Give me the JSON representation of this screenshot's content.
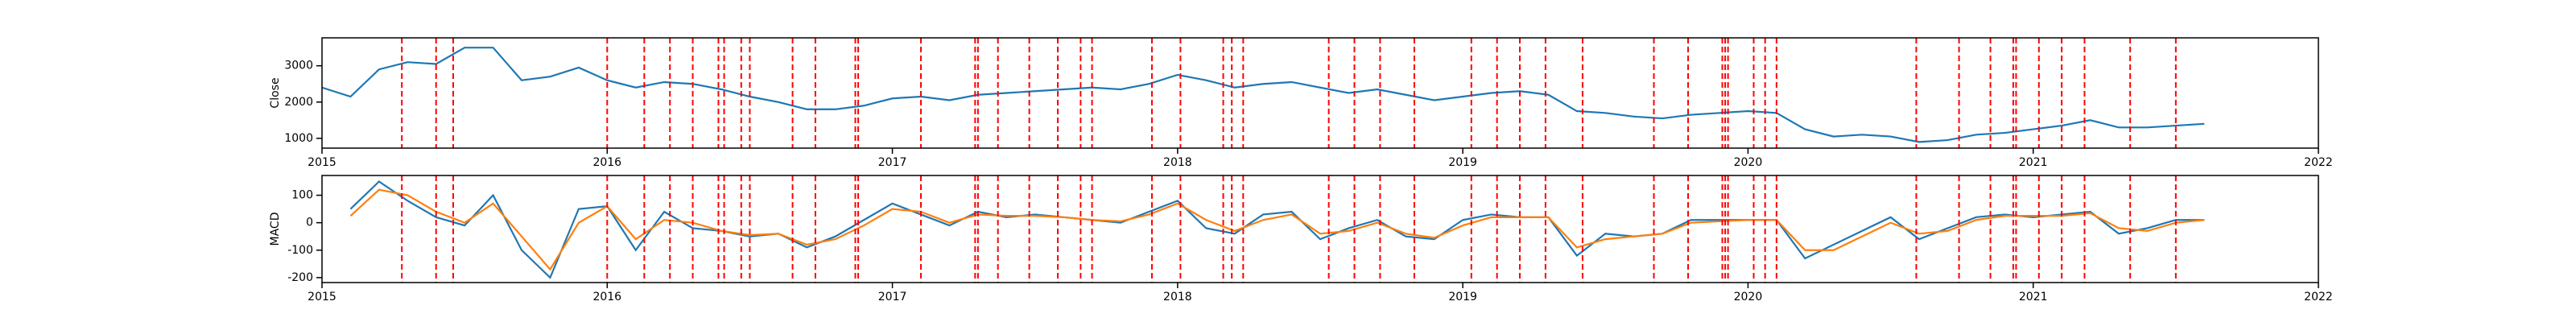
{
  "chart_data": [
    {
      "type": "line",
      "ylabel": "Close",
      "x": [
        2015.0,
        2015.1,
        2015.2,
        2015.3,
        2015.4,
        2015.5,
        2015.6,
        2015.7,
        2015.8,
        2015.9,
        2016.0,
        2016.1,
        2016.2,
        2016.3,
        2016.4,
        2016.5,
        2016.6,
        2016.7,
        2016.8,
        2016.9,
        2017.0,
        2017.1,
        2017.2,
        2017.3,
        2017.4,
        2017.5,
        2017.6,
        2017.7,
        2017.8,
        2017.9,
        2018.0,
        2018.1,
        2018.2,
        2018.3,
        2018.4,
        2018.5,
        2018.6,
        2018.7,
        2018.8,
        2018.9,
        2019.0,
        2019.1,
        2019.2,
        2019.3,
        2019.4,
        2019.5,
        2019.6,
        2019.7,
        2019.8,
        2019.9,
        2020.0,
        2020.1,
        2020.2,
        2020.3,
        2020.4,
        2020.5,
        2020.6,
        2020.7,
        2020.8,
        2020.9,
        2021.0,
        2021.1,
        2021.2,
        2021.3,
        2021.4,
        2021.5,
        2021.6
      ],
      "series": [
        {
          "color": "#1f77b4",
          "values": [
            2400,
            2150,
            2900,
            3100,
            3050,
            3500,
            3500,
            2600,
            2700,
            2950,
            2600,
            2400,
            2550,
            2500,
            2350,
            2150,
            2000,
            1800,
            1800,
            1900,
            2100,
            2150,
            2050,
            2200,
            2250,
            2300,
            2350,
            2400,
            2350,
            2500,
            2750,
            2600,
            2400,
            2500,
            2550,
            2400,
            2250,
            2350,
            2200,
            2050,
            2150,
            2250,
            2300,
            2200,
            1750,
            1700,
            1600,
            1550,
            1650,
            1700,
            1750,
            1700,
            1250,
            1050,
            1100,
            1050,
            900,
            950,
            1100,
            1150,
            1250,
            1350,
            1500,
            1300,
            1300,
            1350,
            1400
          ]
        }
      ],
      "xlim": [
        2015,
        2022
      ],
      "xticks": [
        2015,
        2016,
        2017,
        2018,
        2019,
        2020,
        2021,
        2022
      ],
      "ylim": [
        730,
        3770
      ],
      "yticks": [
        1000,
        2000,
        3000
      ],
      "vlines": {
        "color": "red",
        "x": [
          2015.28,
          2015.4,
          2015.46,
          2016.0,
          2016.13,
          2016.22,
          2016.3,
          2016.39,
          2016.41,
          2016.47,
          2016.5,
          2016.65,
          2016.73,
          2016.87,
          2016.88,
          2017.1,
          2017.29,
          2017.3,
          2017.37,
          2017.48,
          2017.58,
          2017.66,
          2017.7,
          2017.91,
          2018.01,
          2018.16,
          2018.19,
          2018.23,
          2018.53,
          2018.62,
          2018.71,
          2018.83,
          2019.03,
          2019.12,
          2019.2,
          2019.29,
          2019.42,
          2019.67,
          2019.79,
          2019.91,
          2019.92,
          2019.93,
          2020.02,
          2020.06,
          2020.1,
          2020.59,
          2020.74,
          2020.85,
          2020.93,
          2020.94,
          2021.02,
          2021.1,
          2021.18,
          2021.34,
          2021.5
        ]
      }
    },
    {
      "type": "line",
      "ylabel": "MACD",
      "x": [
        2015.0,
        2015.1,
        2015.2,
        2015.3,
        2015.4,
        2015.5,
        2015.6,
        2015.7,
        2015.8,
        2015.9,
        2016.0,
        2016.1,
        2016.2,
        2016.3,
        2016.4,
        2016.5,
        2016.6,
        2016.7,
        2016.8,
        2016.9,
        2017.0,
        2017.1,
        2017.2,
        2017.3,
        2017.4,
        2017.5,
        2017.6,
        2017.7,
        2017.8,
        2017.9,
        2018.0,
        2018.1,
        2018.2,
        2018.3,
        2018.4,
        2018.5,
        2018.6,
        2018.7,
        2018.8,
        2018.9,
        2019.0,
        2019.1,
        2019.2,
        2019.3,
        2019.4,
        2019.5,
        2019.6,
        2019.7,
        2019.8,
        2019.9,
        2020.0,
        2020.1,
        2020.2,
        2020.3,
        2020.4,
        2020.5,
        2020.6,
        2020.7,
        2020.8,
        2020.9,
        2021.0,
        2021.1,
        2021.2,
        2021.3,
        2021.4,
        2021.5,
        2021.6
      ],
      "series": [
        {
          "color": "#1f77b4",
          "values": [
            null,
            50,
            150,
            80,
            20,
            -10,
            100,
            -100,
            -200,
            50,
            60,
            -100,
            40,
            -20,
            -30,
            -50,
            -40,
            -90,
            -50,
            10,
            70,
            30,
            -10,
            40,
            20,
            30,
            20,
            10,
            0,
            40,
            80,
            -20,
            -40,
            30,
            40,
            -60,
            -20,
            10,
            -50,
            -60,
            10,
            30,
            20,
            20,
            -120,
            -40,
            -50,
            -40,
            10,
            10,
            10,
            10,
            -130,
            -80,
            -30,
            20,
            -60,
            -20,
            20,
            30,
            20,
            30,
            40,
            -40,
            -20,
            10,
            10
          ]
        },
        {
          "color": "#ff7f0e",
          "values": [
            null,
            25,
            120,
            100,
            40,
            0,
            70,
            -50,
            -170,
            0,
            60,
            -60,
            10,
            0,
            -30,
            -45,
            -40,
            -80,
            -60,
            -10,
            50,
            40,
            0,
            30,
            25,
            25,
            20,
            10,
            5,
            30,
            70,
            10,
            -30,
            10,
            30,
            -40,
            -30,
            0,
            -40,
            -55,
            -10,
            20,
            20,
            20,
            -90,
            -60,
            -50,
            -40,
            0,
            5,
            10,
            10,
            -100,
            -100,
            -50,
            0,
            -40,
            -30,
            10,
            25,
            25,
            25,
            35,
            -20,
            -30,
            0,
            10
          ]
        }
      ],
      "xlim": [
        2015,
        2022
      ],
      "xticks": [
        2015,
        2016,
        2017,
        2018,
        2019,
        2020,
        2021,
        2022
      ],
      "ylim": [
        -218,
        172
      ],
      "yticks": [
        -200,
        -100,
        0,
        100
      ],
      "vlines": {
        "color": "red",
        "x": [
          2015.28,
          2015.4,
          2015.46,
          2016.0,
          2016.13,
          2016.22,
          2016.3,
          2016.39,
          2016.41,
          2016.47,
          2016.5,
          2016.65,
          2016.73,
          2016.87,
          2016.88,
          2017.1,
          2017.29,
          2017.3,
          2017.37,
          2017.48,
          2017.58,
          2017.66,
          2017.7,
          2017.91,
          2018.01,
          2018.16,
          2018.19,
          2018.23,
          2018.53,
          2018.62,
          2018.71,
          2018.83,
          2019.03,
          2019.12,
          2019.2,
          2019.29,
          2019.42,
          2019.67,
          2019.79,
          2019.91,
          2019.92,
          2019.93,
          2020.02,
          2020.06,
          2020.1,
          2020.59,
          2020.74,
          2020.85,
          2020.93,
          2020.94,
          2021.02,
          2021.1,
          2021.18,
          2021.34,
          2021.5
        ]
      }
    }
  ]
}
